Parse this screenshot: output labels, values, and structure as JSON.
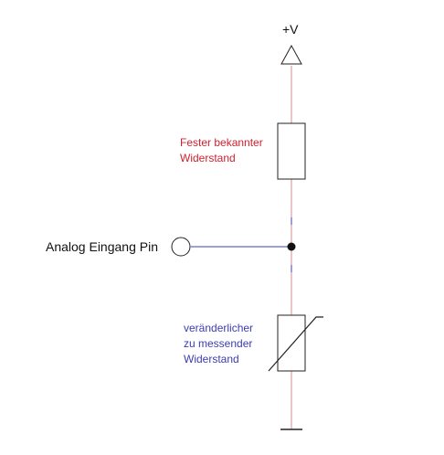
{
  "supply": {
    "label": "+V"
  },
  "fixed_resistor": {
    "label_lines": [
      "Fester bekannter",
      "Widerstand"
    ]
  },
  "input_pin": {
    "label": "Analog Eingang Pin"
  },
  "variable_resistor": {
    "label_lines": [
      "veränderlicher",
      "zu messender",
      "Widerstand"
    ]
  },
  "colors": {
    "wire_vertical": "#d98c8c",
    "wire_horizontal": "#3c3cb4",
    "component_outline": "#222222",
    "fixed_label": "#d21f2b",
    "variable_label": "#3c3cb4",
    "node": "#111111"
  },
  "icons": {
    "supply_symbol": "triangle-arrow-icon",
    "ground_symbol": "ground-icon",
    "input_terminal": "open-circle-icon",
    "junction": "junction-dot-icon"
  }
}
